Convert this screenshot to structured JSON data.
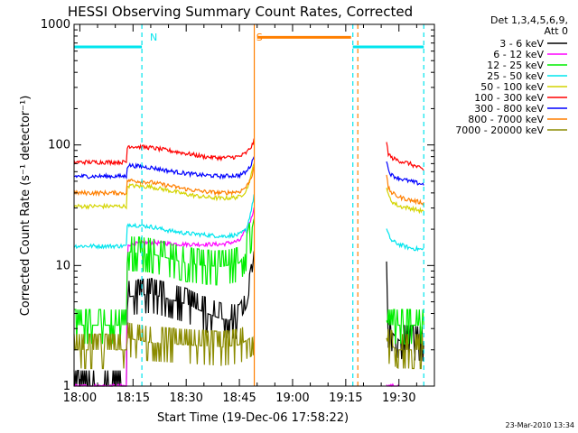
{
  "chart_data": {
    "type": "line",
    "title": "HESSI Observing Summary Count Rates, Corrected",
    "xlabel": "Start Time (19-Dec-06 17:58:22)",
    "ylabel": "Corrected Count Rate (s⁻¹ detector⁻¹)",
    "x_ticks": [
      "18:00",
      "18:15",
      "18:30",
      "18:45",
      "19:00",
      "19:15",
      "19:30"
    ],
    "x_tick_minutes": [
      0,
      15,
      30,
      45,
      60,
      75,
      90
    ],
    "xlim_minutes": [
      -1.63,
      100
    ],
    "y_scale": "log",
    "ylim": [
      1,
      1000
    ],
    "y_ticks": [
      "1",
      "10",
      "100",
      "1000"
    ],
    "y_tick_values": [
      1,
      10,
      100,
      1000
    ],
    "legend": {
      "position": "top-right",
      "header": [
        "Det 1,3,4,5,6,9,",
        "Att 0"
      ]
    },
    "annotations": [
      {
        "text": "N",
        "minute": 19.0,
        "color": "#00e5ee"
      },
      {
        "text": "S",
        "minute": 52.3,
        "color": "#ff7f00"
      }
    ],
    "event_lines": [
      {
        "minute": 17.5,
        "color": "#00e5ee"
      },
      {
        "minute": 49.2,
        "color": "#ff7f00"
      },
      {
        "minute": 77.0,
        "color": "#00e5ee"
      },
      {
        "minute": 78.4,
        "color": "#ff7f00"
      },
      {
        "minute": 97.0,
        "color": "#00e5ee"
      }
    ],
    "flag_segments": [
      {
        "color": "#00e5ee",
        "minutes": [
          -1.63,
          17.5
        ],
        "value": 650
      },
      {
        "color": "#00e5ee",
        "minutes": [
          77.0,
          97.0
        ],
        "value": 650
      },
      {
        "color": "#ff7f00",
        "minutes": [
          50.0,
          76.5
        ],
        "value": 780
      }
    ],
    "series": [
      {
        "name": "3 - 6 keV",
        "color": "#000000",
        "style": "noisy",
        "x": [
          -1.63,
          13.2,
          13.4,
          20,
          25,
          30,
          35,
          40,
          45,
          47,
          48.5,
          49.2
        ],
        "y": [
          1.0,
          1.0,
          5.5,
          5.8,
          5.3,
          4.8,
          4.1,
          3.6,
          3.5,
          4.5,
          8.0,
          14.0
        ],
        "x2": [
          86.5,
          87,
          90,
          97
        ],
        "y2": [
          8.0,
          3.0,
          2.4,
          2.3
        ]
      },
      {
        "name": "6 - 12 keV",
        "color": "#ff00ff",
        "style": "flat",
        "x": [
          -1.63,
          13.2,
          13.4,
          20,
          30,
          40,
          45,
          47,
          48.5,
          49.2
        ],
        "y": [
          1.0,
          1.0,
          15.0,
          15.5,
          15.0,
          15.0,
          16.0,
          20.0,
          25.0,
          32.0
        ],
        "x2": [
          86.5,
          87,
          88,
          89,
          90
        ],
        "y2": [
          1.0,
          1.0,
          1.0,
          1.0,
          1.0
        ]
      },
      {
        "name": "12 - 25 keV",
        "color": "#00ee00",
        "style": "noisy",
        "x": [
          -1.63,
          13.2,
          13.4,
          20,
          25,
          30,
          35,
          40,
          45,
          47,
          48.5,
          49.2
        ],
        "y": [
          3.2,
          3.2,
          13.0,
          12.5,
          11.5,
          10.5,
          10.0,
          9.8,
          10.5,
          13.0,
          20.0,
          25.0
        ],
        "x2": [
          86.5,
          87,
          90,
          97
        ],
        "y2": [
          3.5,
          3.2,
          3.2,
          3.2
        ]
      },
      {
        "name": "25 - 50 keV",
        "color": "#00e5ee",
        "style": "flat",
        "x": [
          -1.63,
          13.2,
          13.4,
          20,
          25,
          30,
          35,
          40,
          45,
          47,
          48.5,
          49.2
        ],
        "y": [
          14.5,
          14.5,
          22.0,
          21.0,
          19.5,
          18.5,
          18.0,
          17.5,
          18.0,
          20.0,
          30.0,
          40.0
        ],
        "x2": [
          86.5,
          87,
          88,
          90,
          93,
          97
        ],
        "y2": [
          20.0,
          18.0,
          16.0,
          15.0,
          14.0,
          13.5
        ]
      },
      {
        "name": "50 - 100 keV",
        "color": "#d4d400",
        "style": "flat",
        "x": [
          -1.63,
          13.2,
          13.4,
          20,
          25,
          30,
          35,
          40,
          45,
          47,
          48.5,
          49.2
        ],
        "y": [
          31.0,
          31.0,
          46.0,
          45.0,
          42.0,
          39.0,
          37.0,
          36.0,
          37.0,
          42.0,
          58.0,
          75.0
        ],
        "x2": [
          86.5,
          87,
          88,
          90,
          93,
          97
        ],
        "y2": [
          45.0,
          38.0,
          34.0,
          31.0,
          30.0,
          28.0
        ]
      },
      {
        "name": "100 - 300 keV",
        "color": "#ff0000",
        "style": "flat",
        "x": [
          -1.63,
          13.2,
          13.4,
          20,
          25,
          30,
          35,
          40,
          45,
          47,
          48.5,
          49.2
        ],
        "y": [
          72.0,
          72.0,
          98.0,
          95.0,
          90.0,
          85.0,
          80.0,
          78.0,
          80.0,
          86.0,
          98.0,
          110.0
        ],
        "x2": [
          86.5,
          87,
          88,
          90,
          93,
          97
        ],
        "y2": [
          105.0,
          85.0,
          78.0,
          74.0,
          70.0,
          62.0
        ]
      },
      {
        "name": "300 - 800 keV",
        "color": "#0000ff",
        "style": "flat",
        "x": [
          -1.63,
          13.2,
          13.4,
          20,
          25,
          30,
          35,
          40,
          45,
          47,
          48.5,
          49.2
        ],
        "y": [
          55.0,
          55.0,
          68.0,
          65.0,
          61.0,
          58.0,
          56.0,
          55.0,
          56.0,
          60.0,
          70.0,
          85.0
        ],
        "x2": [
          86.5,
          87,
          88,
          90,
          93,
          97
        ],
        "y2": [
          75.0,
          62.0,
          56.0,
          53.0,
          50.0,
          47.0
        ]
      },
      {
        "name": "800 - 7000 keV",
        "color": "#ff7f00",
        "style": "flat",
        "x": [
          -1.63,
          13.2,
          13.4,
          20,
          25,
          30,
          35,
          40,
          45,
          47,
          48.5,
          49.2
        ],
        "y": [
          40.0,
          40.0,
          51.0,
          49.0,
          46.0,
          43.0,
          41.0,
          40.0,
          41.0,
          45.0,
          55.0,
          70.0
        ],
        "x2": [
          86.5,
          87,
          88,
          90,
          93,
          97
        ],
        "y2": [
          55.0,
          44.0,
          40.0,
          37.0,
          35.0,
          33.0
        ]
      },
      {
        "name": "7000 - 20000 keV",
        "color": "#8b8b00",
        "style": "noisy",
        "x": [
          -1.63,
          10,
          13.2,
          13.4,
          20,
          30,
          40,
          45,
          48,
          49.2
        ],
        "y": [
          2.0,
          2.0,
          2.0,
          2.5,
          2.3,
          2.2,
          2.1,
          2.2,
          2.5,
          2.6
        ],
        "x2": [
          86.5,
          87,
          90,
          97
        ],
        "y2": [
          2.5,
          2.2,
          2.0,
          2.0
        ]
      }
    ]
  },
  "footer": {
    "timestamp": "23-Mar-2010 13:34"
  }
}
